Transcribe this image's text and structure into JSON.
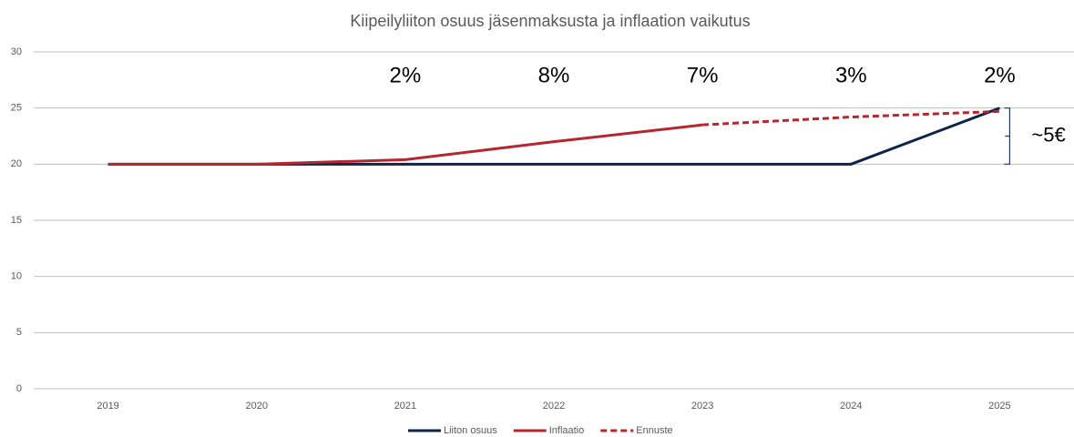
{
  "chart_data": {
    "type": "line",
    "title": "Kiipeilyliiton osuus jäsenmaksusta ja inflaation vaikutus",
    "categories": [
      "2019",
      "2020",
      "2021",
      "2022",
      "2023",
      "2024",
      "2025"
    ],
    "series": [
      {
        "name": "Liiton osuus",
        "color": "#0e2448",
        "dashed": false,
        "values": [
          20,
          20,
          20,
          20,
          20,
          20,
          25
        ]
      },
      {
        "name": "Inflaatio",
        "color": "#b5262e",
        "dashed": false,
        "values": [
          20,
          20,
          20.4,
          22,
          23.5,
          null,
          null
        ]
      },
      {
        "name": "Ennuste",
        "color": "#b5262e",
        "dashed": true,
        "values": [
          null,
          null,
          null,
          null,
          23.5,
          24.2,
          24.7
        ]
      }
    ],
    "ylim": [
      0,
      30
    ],
    "yticks": [
      0,
      5,
      10,
      15,
      20,
      25,
      30
    ],
    "grid": true,
    "annotations": [
      {
        "x": "2021",
        "text": "2%"
      },
      {
        "x": "2022",
        "text": "8%"
      },
      {
        "x": "2023",
        "text": "7%"
      },
      {
        "x": "2024",
        "text": "3%"
      },
      {
        "x": "2025",
        "text": "2%"
      }
    ],
    "bracket": {
      "x": "2025",
      "from": 20,
      "to": 25,
      "text": "~5€"
    },
    "legend": "bottom"
  }
}
